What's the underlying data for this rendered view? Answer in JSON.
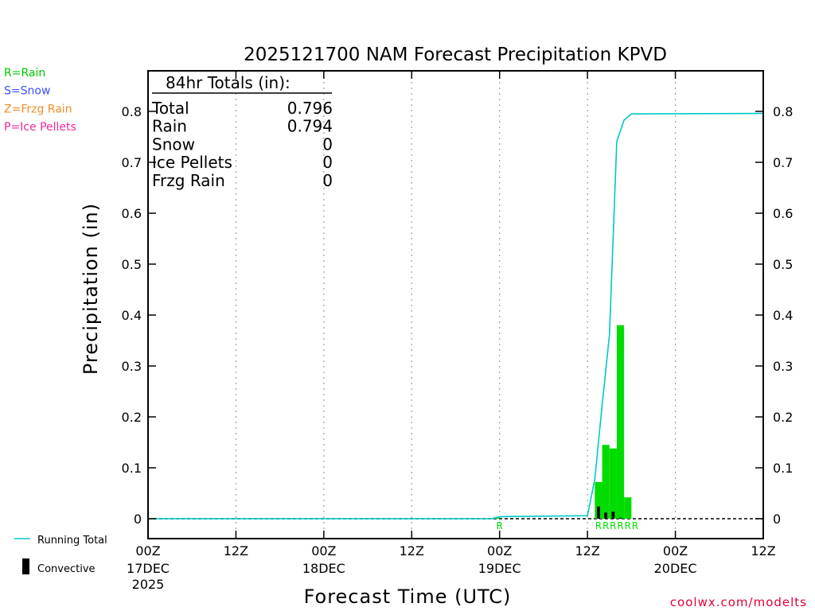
{
  "chart_data": {
    "type": "bar",
    "title": "2025121700 NAM Forecast Precipitation KPVD",
    "xlabel": "Forecast Time (UTC)",
    "ylabel": "Precipitation (in)",
    "x_unit": "forecast hour",
    "xlim": [
      0,
      84
    ],
    "ylim": [
      0,
      0.88
    ],
    "yticks": [
      0,
      0.1,
      0.2,
      0.3,
      0.4,
      0.5,
      0.6,
      0.7,
      0.8
    ],
    "ytick_labels": [
      "0",
      "0.1",
      "0.2",
      "0.3",
      "0.4",
      "0.5",
      "0.6",
      "0.7",
      "0.8"
    ],
    "xticks": [
      {
        "hour": 0,
        "line1": "00Z",
        "line2": "17DEC",
        "line3": "2025"
      },
      {
        "hour": 12,
        "line1": "12Z",
        "line2": "",
        "line3": ""
      },
      {
        "hour": 24,
        "line1": "00Z",
        "line2": "18DEC",
        "line3": ""
      },
      {
        "hour": 36,
        "line1": "12Z",
        "line2": "",
        "line3": ""
      },
      {
        "hour": 48,
        "line1": "00Z",
        "line2": "19DEC",
        "line3": ""
      },
      {
        "hour": 60,
        "line1": "12Z",
        "line2": "",
        "line3": ""
      },
      {
        "hour": 72,
        "line1": "00Z",
        "line2": "20DEC",
        "line3": ""
      },
      {
        "hour": 84,
        "line1": "12Z",
        "line2": "",
        "line3": ""
      }
    ],
    "grid": true,
    "series": [
      {
        "name": "Precipitation",
        "kind": "bar",
        "color": "#00dc00",
        "bars": [
          {
            "start": 47,
            "end": 48,
            "value": 0.002
          },
          {
            "start": 61,
            "end": 62,
            "value": 0.072
          },
          {
            "start": 62,
            "end": 63,
            "value": 0.145
          },
          {
            "start": 63,
            "end": 64,
            "value": 0.138
          },
          {
            "start": 64,
            "end": 65,
            "value": 0.38
          },
          {
            "start": 65,
            "end": 66,
            "value": 0.042
          }
        ]
      },
      {
        "name": "Convective",
        "kind": "bar",
        "color": "#000000",
        "bars": [
          {
            "start": 61.3,
            "end": 61.7,
            "value": 0.024
          },
          {
            "start": 62.3,
            "end": 62.7,
            "value": 0.012
          },
          {
            "start": 63.3,
            "end": 63.7,
            "value": 0.014
          },
          {
            "start": 64.3,
            "end": 64.7,
            "value": 0.002
          }
        ]
      },
      {
        "name": "Running Total",
        "kind": "line",
        "color": "#00c8c8",
        "x": [
          0,
          47,
          48,
          60,
          61,
          62,
          63,
          64,
          65,
          66,
          84
        ],
        "y": [
          0,
          0,
          0.004,
          0.006,
          0.078,
          0.223,
          0.361,
          0.741,
          0.783,
          0.795,
          0.796
        ]
      }
    ],
    "ptype_markers": [
      {
        "hour": 48,
        "label": "R"
      },
      {
        "hour": 61.5,
        "label": "R"
      },
      {
        "hour": 62.5,
        "label": "R"
      },
      {
        "hour": 63.5,
        "label": "R"
      },
      {
        "hour": 64.5,
        "label": "R"
      },
      {
        "hour": 65.5,
        "label": "R"
      },
      {
        "hour": 66.5,
        "label": "R"
      }
    ],
    "totals_box": {
      "header": "84hr Totals (in):",
      "rows": [
        {
          "label": "Total",
          "value": "0.796"
        },
        {
          "label": "Rain",
          "value": "0.794"
        },
        {
          "label": "Snow",
          "value": "0"
        },
        {
          "label": "Ice Pellets",
          "value": "0"
        },
        {
          "label": "Frzg Rain",
          "value": "0"
        }
      ]
    },
    "ptype_legend": [
      {
        "text": "R=Rain",
        "color": "#00c800"
      },
      {
        "text": "S=Snow",
        "color": "#3c50ff"
      },
      {
        "text": "Z=Frzg Rain",
        "color": "#f08c28"
      },
      {
        "text": "P=Ice Pellets",
        "color": "#f0289b"
      }
    ],
    "legend": [
      {
        "text": "Running Total",
        "symbol": "line",
        "color": "#00c8c8"
      },
      {
        "text": "Convective",
        "symbol": "bar",
        "color": "#000000"
      }
    ],
    "credit": "coolwx.com/modelts"
  }
}
